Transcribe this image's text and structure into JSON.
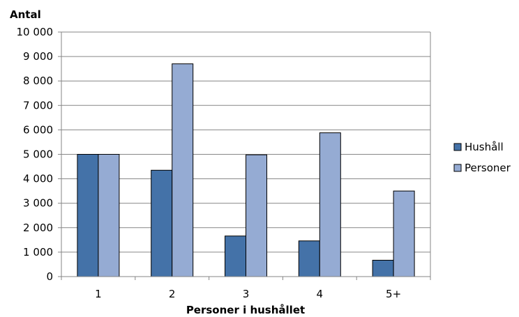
{
  "chart_data": {
    "type": "bar",
    "title": "",
    "ylabel": "Antal",
    "xlabel": "Personer i hushållet",
    "categories": [
      "1",
      "2",
      "3",
      "4",
      "5+"
    ],
    "series": [
      {
        "name": "Hushåll",
        "color": "#4472A8",
        "values": [
          5000,
          4350,
          1660,
          1460,
          670
        ]
      },
      {
        "name": "Personer",
        "color": "#95ABD3",
        "values": [
          5000,
          8700,
          4980,
          5880,
          3500
        ]
      }
    ],
    "ylim": [
      0,
      10000
    ],
    "yticks": [
      0,
      1000,
      2000,
      3000,
      4000,
      5000,
      6000,
      7000,
      8000,
      9000,
      10000
    ],
    "ytick_labels": [
      "0",
      "1 000",
      "2 000",
      "3 000",
      "4 000",
      "5 000",
      "6 000",
      "7 000",
      "8 000",
      "9 000",
      "10 000"
    ],
    "grid": true,
    "legend_position": "right"
  }
}
